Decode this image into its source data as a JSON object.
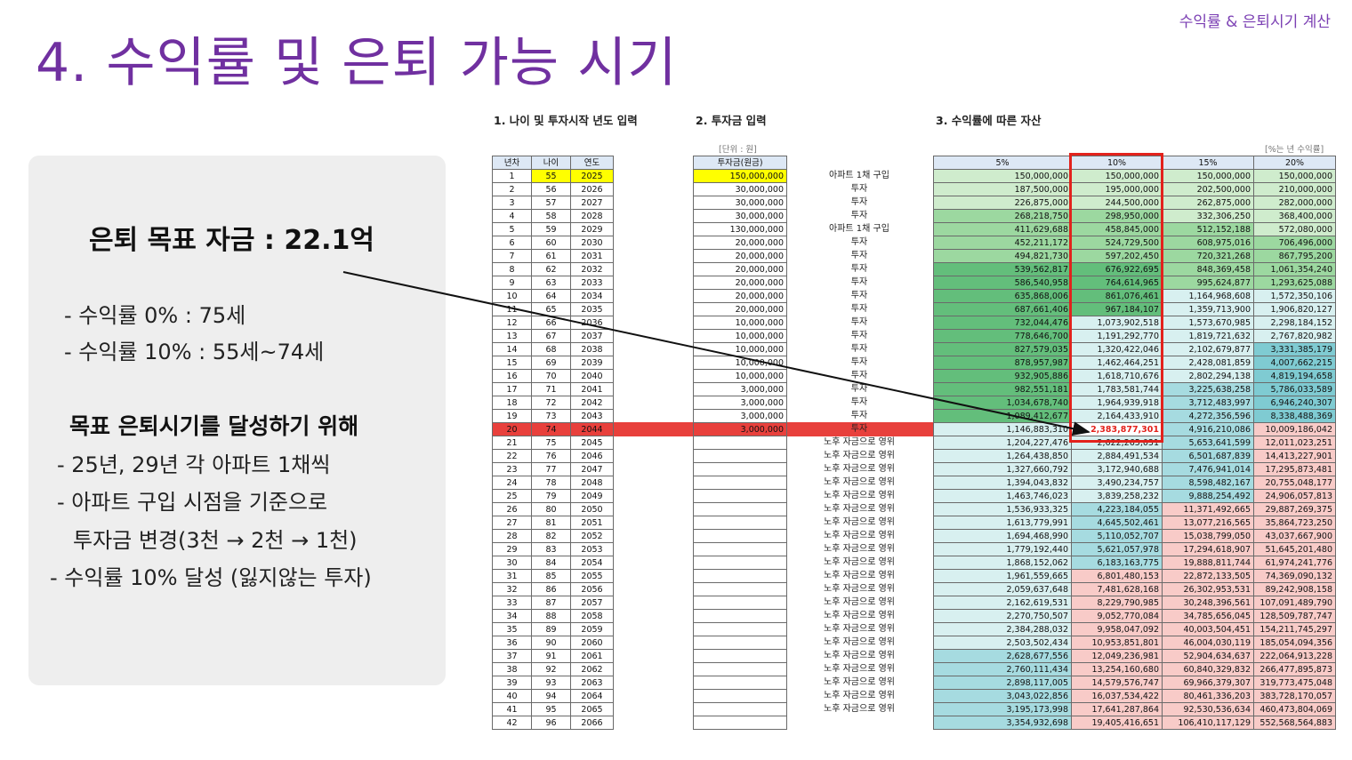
{
  "corner_label": "수익률 & 은퇴시기 계산",
  "title": "4. 수익률 및 은퇴 가능 시기",
  "info": {
    "goal": "은퇴 목표 자금 : 22.1억",
    "rate0": "- 수익률    0% : 75세",
    "rate10": "- 수익률 10% : 55세~74세",
    "heading": "목표 은퇴시기를 달성하기 위해",
    "b1": "- 25년, 29년 각 아파트 1채씩",
    "b2": "- 아파트 구입 시점을 기준으로",
    "b3": "투자금 변경(3천 → 2천 → 1천)",
    "b4": "- 수익률 10% 달성 (잃지않는 투자)"
  },
  "sections": {
    "s1": "1. 나이 및 투자시작 년도 입력",
    "s2": "2. 투자금 입력",
    "s3": "3. 수익률에 따른 자산",
    "unit_left": "[단위 : 원]",
    "unit_right": "[%는 년 수익률]"
  },
  "table_headers": {
    "year_no": "년차",
    "age": "나이",
    "year": "연도",
    "invest": "투자금(원금)",
    "r5": "5%",
    "r10": "10%",
    "r15": "15%",
    "r20": "20%"
  },
  "highlight_row_index": 19,
  "colors": {
    "title": "#7030a0",
    "highlight_row": "#e8403c",
    "highlight_box": "#e3221c",
    "input_yellow": "#ffff00",
    "green_light": "#cfeccd",
    "green_mid": "#9cd8a0",
    "green_dark": "#63be7b",
    "teal_light": "#d8f0f0",
    "teal_mid": "#a6dbe0",
    "teal_dark": "#7fcbd2",
    "pink": "#f8cbc8"
  },
  "rows": [
    {
      "n": "1",
      "age": "55",
      "year": "2025",
      "invest": "150,000,000",
      "note": "아파트 1채 구입",
      "r5": "150,000,000",
      "r10": "150,000,000",
      "r15": "150,000,000",
      "r20": "150,000,000"
    },
    {
      "n": "2",
      "age": "56",
      "year": "2026",
      "invest": "30,000,000",
      "note": "투자",
      "r5": "187,500,000",
      "r10": "195,000,000",
      "r15": "202,500,000",
      "r20": "210,000,000"
    },
    {
      "n": "3",
      "age": "57",
      "year": "2027",
      "invest": "30,000,000",
      "note": "투자",
      "r5": "226,875,000",
      "r10": "244,500,000",
      "r15": "262,875,000",
      "r20": "282,000,000"
    },
    {
      "n": "4",
      "age": "58",
      "year": "2028",
      "invest": "30,000,000",
      "note": "투자",
      "r5": "268,218,750",
      "r10": "298,950,000",
      "r15": "332,306,250",
      "r20": "368,400,000"
    },
    {
      "n": "5",
      "age": "59",
      "year": "2029",
      "invest": "130,000,000",
      "note": "아파트 1채 구입",
      "r5": "411,629,688",
      "r10": "458,845,000",
      "r15": "512,152,188",
      "r20": "572,080,000"
    },
    {
      "n": "6",
      "age": "60",
      "year": "2030",
      "invest": "20,000,000",
      "note": "투자",
      "r5": "452,211,172",
      "r10": "524,729,500",
      "r15": "608,975,016",
      "r20": "706,496,000"
    },
    {
      "n": "7",
      "age": "61",
      "year": "2031",
      "invest": "20,000,000",
      "note": "투자",
      "r5": "494,821,730",
      "r10": "597,202,450",
      "r15": "720,321,268",
      "r20": "867,795,200"
    },
    {
      "n": "8",
      "age": "62",
      "year": "2032",
      "invest": "20,000,000",
      "note": "투자",
      "r5": "539,562,817",
      "r10": "676,922,695",
      "r15": "848,369,458",
      "r20": "1,061,354,240"
    },
    {
      "n": "9",
      "age": "63",
      "year": "2033",
      "invest": "20,000,000",
      "note": "투자",
      "r5": "586,540,958",
      "r10": "764,614,965",
      "r15": "995,624,877",
      "r20": "1,293,625,088"
    },
    {
      "n": "10",
      "age": "64",
      "year": "2034",
      "invest": "20,000,000",
      "note": "투자",
      "r5": "635,868,006",
      "r10": "861,076,461",
      "r15": "1,164,968,608",
      "r20": "1,572,350,106"
    },
    {
      "n": "11",
      "age": "65",
      "year": "2035",
      "invest": "20,000,000",
      "note": "투자",
      "r5": "687,661,406",
      "r10": "967,184,107",
      "r15": "1,359,713,900",
      "r20": "1,906,820,127"
    },
    {
      "n": "12",
      "age": "66",
      "year": "2036",
      "invest": "10,000,000",
      "note": "투자",
      "r5": "732,044,476",
      "r10": "1,073,902,518",
      "r15": "1,573,670,985",
      "r20": "2,298,184,152"
    },
    {
      "n": "13",
      "age": "67",
      "year": "2037",
      "invest": "10,000,000",
      "note": "투자",
      "r5": "778,646,700",
      "r10": "1,191,292,770",
      "r15": "1,819,721,632",
      "r20": "2,767,820,982"
    },
    {
      "n": "14",
      "age": "68",
      "year": "2038",
      "invest": "10,000,000",
      "note": "투자",
      "r5": "827,579,035",
      "r10": "1,320,422,046",
      "r15": "2,102,679,877",
      "r20": "3,331,385,179"
    },
    {
      "n": "15",
      "age": "69",
      "year": "2039",
      "invest": "10,000,000",
      "note": "투자",
      "r5": "878,957,987",
      "r10": "1,462,464,251",
      "r15": "2,428,081,859",
      "r20": "4,007,662,215"
    },
    {
      "n": "16",
      "age": "70",
      "year": "2040",
      "invest": "10,000,000",
      "note": "투자",
      "r5": "932,905,886",
      "r10": "1,618,710,676",
      "r15": "2,802,294,138",
      "r20": "4,819,194,658"
    },
    {
      "n": "17",
      "age": "71",
      "year": "2041",
      "invest": "3,000,000",
      "note": "투자",
      "r5": "982,551,181",
      "r10": "1,783,581,744",
      "r15": "3,225,638,258",
      "r20": "5,786,033,589"
    },
    {
      "n": "18",
      "age": "72",
      "year": "2042",
      "invest": "3,000,000",
      "note": "투자",
      "r5": "1,034,678,740",
      "r10": "1,964,939,918",
      "r15": "3,712,483,997",
      "r20": "6,946,240,307"
    },
    {
      "n": "19",
      "age": "73",
      "year": "2043",
      "invest": "3,000,000",
      "note": "투자",
      "r5": "1,089,412,677",
      "r10": "2,164,433,910",
      "r15": "4,272,356,596",
      "r20": "8,338,488,369"
    },
    {
      "n": "20",
      "age": "74",
      "year": "2044",
      "invest": "3,000,000",
      "note": "투자",
      "r5": "1,146,883,310",
      "r10": "2,383,877,301",
      "r15": "4,916,210,086",
      "r20": "10,009,186,042"
    },
    {
      "n": "21",
      "age": "75",
      "year": "2045",
      "invest": "",
      "note": "노후 자금으로 영위",
      "r5": "1,204,227,476",
      "r10": "2,622,265,031",
      "r15": "5,653,641,599",
      "r20": "12,011,023,251"
    },
    {
      "n": "22",
      "age": "76",
      "year": "2046",
      "invest": "",
      "note": "노후 자금으로 영위",
      "r5": "1,264,438,850",
      "r10": "2,884,491,534",
      "r15": "6,501,687,839",
      "r20": "14,413,227,901"
    },
    {
      "n": "23",
      "age": "77",
      "year": "2047",
      "invest": "",
      "note": "노후 자금으로 영위",
      "r5": "1,327,660,792",
      "r10": "3,172,940,688",
      "r15": "7,476,941,014",
      "r20": "17,295,873,481"
    },
    {
      "n": "24",
      "age": "78",
      "year": "2048",
      "invest": "",
      "note": "노후 자금으로 영위",
      "r5": "1,394,043,832",
      "r10": "3,490,234,757",
      "r15": "8,598,482,167",
      "r20": "20,755,048,177"
    },
    {
      "n": "25",
      "age": "79",
      "year": "2049",
      "invest": "",
      "note": "노후 자금으로 영위",
      "r5": "1,463,746,023",
      "r10": "3,839,258,232",
      "r15": "9,888,254,492",
      "r20": "24,906,057,813"
    },
    {
      "n": "26",
      "age": "80",
      "year": "2050",
      "invest": "",
      "note": "노후 자금으로 영위",
      "r5": "1,536,933,325",
      "r10": "4,223,184,055",
      "r15": "11,371,492,665",
      "r20": "29,887,269,375"
    },
    {
      "n": "27",
      "age": "81",
      "year": "2051",
      "invest": "",
      "note": "노후 자금으로 영위",
      "r5": "1,613,779,991",
      "r10": "4,645,502,461",
      "r15": "13,077,216,565",
      "r20": "35,864,723,250"
    },
    {
      "n": "28",
      "age": "82",
      "year": "2052",
      "invest": "",
      "note": "노후 자금으로 영위",
      "r5": "1,694,468,990",
      "r10": "5,110,052,707",
      "r15": "15,038,799,050",
      "r20": "43,037,667,900"
    },
    {
      "n": "29",
      "age": "83",
      "year": "2053",
      "invest": "",
      "note": "노후 자금으로 영위",
      "r5": "1,779,192,440",
      "r10": "5,621,057,978",
      "r15": "17,294,618,907",
      "r20": "51,645,201,480"
    },
    {
      "n": "30",
      "age": "84",
      "year": "2054",
      "invest": "",
      "note": "노후 자금으로 영위",
      "r5": "1,868,152,062",
      "r10": "6,183,163,775",
      "r15": "19,888,811,744",
      "r20": "61,974,241,776"
    },
    {
      "n": "31",
      "age": "85",
      "year": "2055",
      "invest": "",
      "note": "노후 자금으로 영위",
      "r5": "1,961,559,665",
      "r10": "6,801,480,153",
      "r15": "22,872,133,505",
      "r20": "74,369,090,132"
    },
    {
      "n": "32",
      "age": "86",
      "year": "2056",
      "invest": "",
      "note": "노후 자금으로 영위",
      "r5": "2,059,637,648",
      "r10": "7,481,628,168",
      "r15": "26,302,953,531",
      "r20": "89,242,908,158"
    },
    {
      "n": "33",
      "age": "87",
      "year": "2057",
      "invest": "",
      "note": "노후 자금으로 영위",
      "r5": "2,162,619,531",
      "r10": "8,229,790,985",
      "r15": "30,248,396,561",
      "r20": "107,091,489,790"
    },
    {
      "n": "34",
      "age": "88",
      "year": "2058",
      "invest": "",
      "note": "노후 자금으로 영위",
      "r5": "2,270,750,507",
      "r10": "9,052,770,084",
      "r15": "34,785,656,045",
      "r20": "128,509,787,747"
    },
    {
      "n": "35",
      "age": "89",
      "year": "2059",
      "invest": "",
      "note": "노후 자금으로 영위",
      "r5": "2,384,288,032",
      "r10": "9,958,047,092",
      "r15": "40,003,504,451",
      "r20": "154,211,745,297"
    },
    {
      "n": "36",
      "age": "90",
      "year": "2060",
      "invest": "",
      "note": "노후 자금으로 영위",
      "r5": "2,503,502,434",
      "r10": "10,953,851,801",
      "r15": "46,004,030,119",
      "r20": "185,054,094,356"
    },
    {
      "n": "37",
      "age": "91",
      "year": "2061",
      "invest": "",
      "note": "노후 자금으로 영위",
      "r5": "2,628,677,556",
      "r10": "12,049,236,981",
      "r15": "52,904,634,637",
      "r20": "222,064,913,228"
    },
    {
      "n": "38",
      "age": "92",
      "year": "2062",
      "invest": "",
      "note": "노후 자금으로 영위",
      "r5": "2,760,111,434",
      "r10": "13,254,160,680",
      "r15": "60,840,329,832",
      "r20": "266,477,895,873"
    },
    {
      "n": "39",
      "age": "93",
      "year": "2063",
      "invest": "",
      "note": "노후 자금으로 영위",
      "r5": "2,898,117,005",
      "r10": "14,579,576,747",
      "r15": "69,966,379,307",
      "r20": "319,773,475,048"
    },
    {
      "n": "40",
      "age": "94",
      "year": "2064",
      "invest": "",
      "note": "노후 자금으로 영위",
      "r5": "3,043,022,856",
      "r10": "16,037,534,422",
      "r15": "80,461,336,203",
      "r20": "383,728,170,057"
    },
    {
      "n": "41",
      "age": "95",
      "year": "2065",
      "invest": "",
      "note": "노후 자금으로 영위",
      "r5": "3,195,173,998",
      "r10": "17,641,287,864",
      "r15": "92,530,536,634",
      "r20": "460,473,804,069"
    },
    {
      "n": "42",
      "age": "96",
      "year": "2066",
      "invest": "",
      "note": "",
      "r5": "3,354,932,698",
      "r10": "19,405,416,651",
      "r15": "106,410,117,129",
      "r20": "552,568,564,883"
    }
  ]
}
